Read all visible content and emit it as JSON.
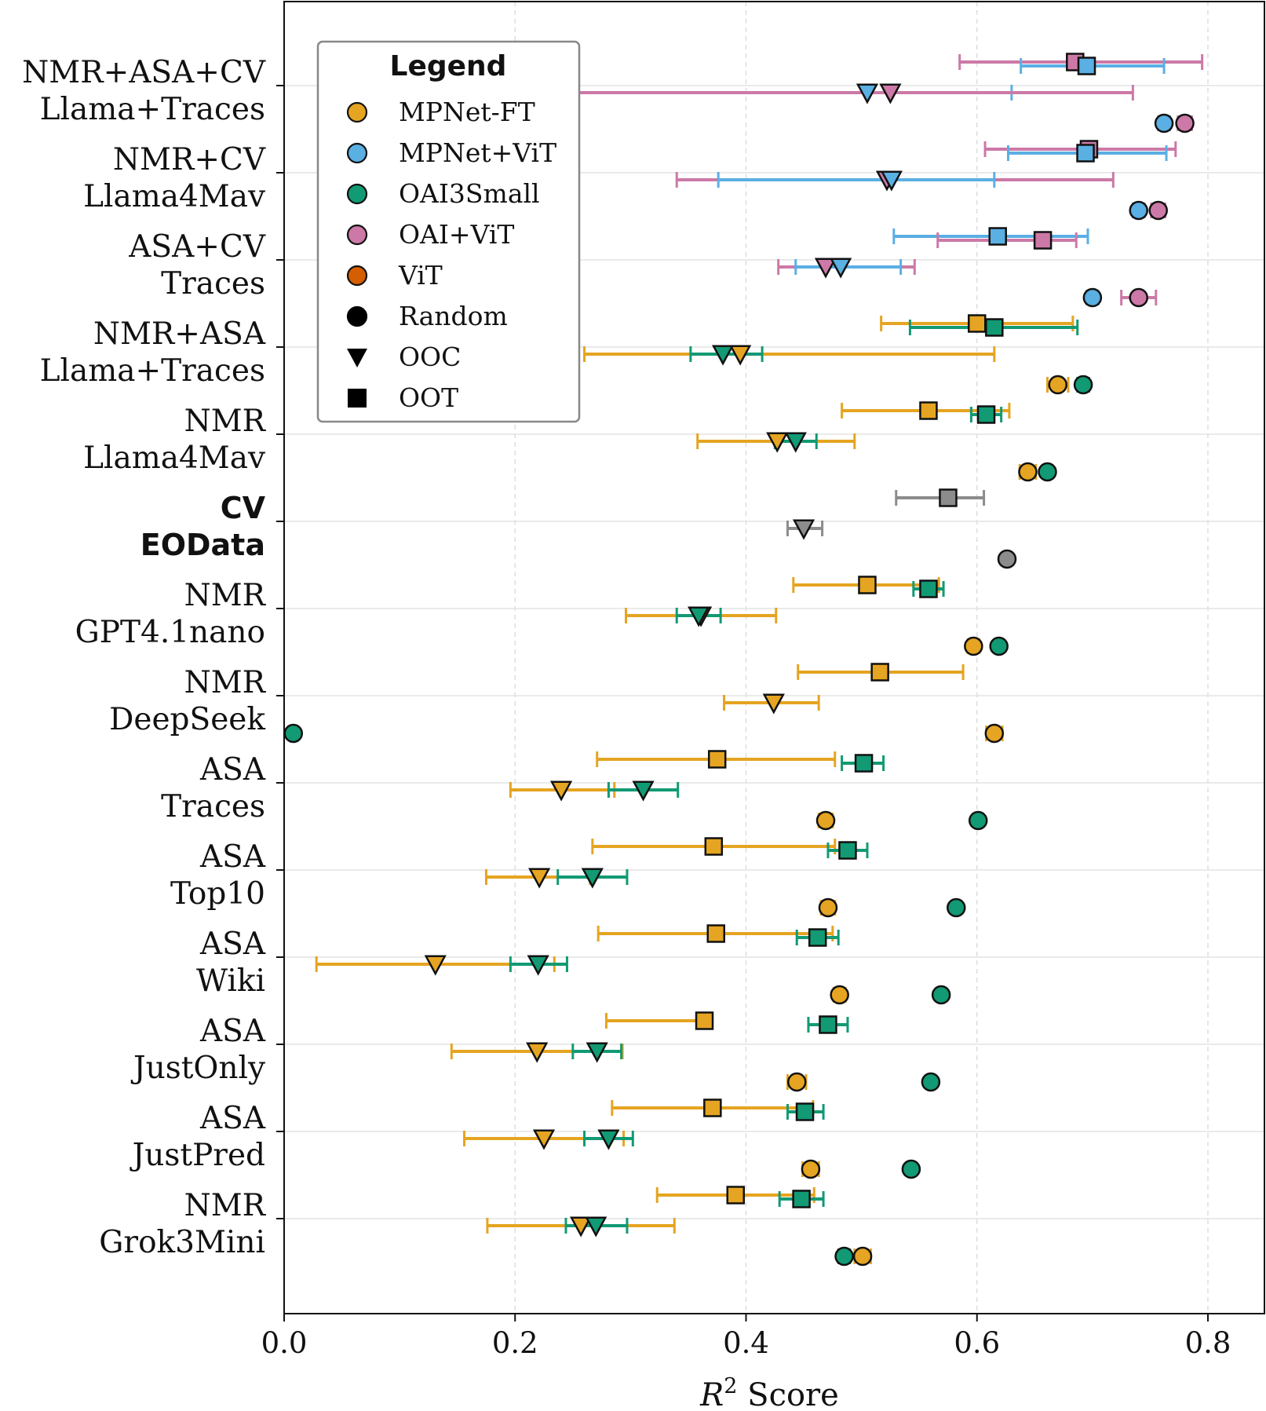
{
  "colors": {
    "MPNet-FT": "#E5A421",
    "MPNet+ViT": "#5AAFE3",
    "OAI3Small": "#119A74",
    "OAI+ViT": "#CC79A7",
    "ViT": "#D55E00",
    "Baseline": "#8C8C8C",
    "Legend-Black": "#000000"
  },
  "chart_data": {
    "type": "scatter",
    "title": "",
    "xlabel_main": "R",
    "xlabel_sup": "2",
    "xlabel_rest": " Score",
    "xlim": [
      0.0,
      0.85
    ],
    "xticks": [
      {
        "value": 0.0,
        "label": "0.0"
      },
      {
        "value": 0.2,
        "label": "0.2"
      },
      {
        "value": 0.4,
        "label": "0.4"
      },
      {
        "value": 0.6,
        "label": "0.6"
      },
      {
        "value": 0.8,
        "label": "0.8"
      }
    ],
    "grid": true,
    "legend": {
      "title": "Legend",
      "position": "top-left",
      "entries": [
        {
          "label": "MPNet-FT",
          "marker": "circle",
          "color": "MPNet-FT"
        },
        {
          "label": "MPNet+ViT",
          "marker": "circle",
          "color": "MPNet+ViT"
        },
        {
          "label": "OAI3Small",
          "marker": "circle",
          "color": "OAI3Small"
        },
        {
          "label": "OAI+ViT",
          "marker": "circle",
          "color": "OAI+ViT"
        },
        {
          "label": "ViT",
          "marker": "circle",
          "color": "ViT"
        },
        {
          "label": "Random",
          "marker": "circle",
          "color": "Legend-Black"
        },
        {
          "label": "OOC",
          "marker": "triangle",
          "color": "Legend-Black"
        },
        {
          "label": "OOT",
          "marker": "square",
          "color": "Legend-Black"
        }
      ]
    },
    "groups": [
      {
        "line1": "NMR+ASA+CV",
        "line2": "Llama+Traces",
        "bold": false,
        "points": [
          {
            "series": "OAI+ViT",
            "split": "OOT",
            "value": 0.685,
            "lo": 0.585,
            "hi": 0.795
          },
          {
            "series": "MPNet+ViT",
            "split": "OOT",
            "value": 0.695,
            "lo": 0.638,
            "hi": 0.762
          },
          {
            "series": "MPNet+ViT",
            "split": "OOC",
            "value": 0.505,
            "lo": 0.21,
            "hi": 0.63
          },
          {
            "series": "OAI+ViT",
            "split": "OOC",
            "value": 0.525,
            "lo": 0.22,
            "hi": 0.735
          },
          {
            "series": "MPNet+ViT",
            "split": "Random",
            "value": 0.762,
            "lo": 0.757,
            "hi": 0.767
          },
          {
            "series": "OAI+ViT",
            "split": "Random",
            "value": 0.78,
            "lo": 0.774,
            "hi": 0.786
          }
        ]
      },
      {
        "line1": "NMR+CV",
        "line2": "Llama4Mav",
        "bold": false,
        "points": [
          {
            "series": "OAI+ViT",
            "split": "OOT",
            "value": 0.697,
            "lo": 0.607,
            "hi": 0.772
          },
          {
            "series": "MPNet+ViT",
            "split": "OOT",
            "value": 0.694,
            "lo": 0.627,
            "hi": 0.764
          },
          {
            "series": "OAI+ViT",
            "split": "OOC",
            "value": 0.522,
            "lo": 0.34,
            "hi": 0.718
          },
          {
            "series": "MPNet+ViT",
            "split": "OOC",
            "value": 0.526,
            "lo": 0.376,
            "hi": 0.615
          },
          {
            "series": "MPNet+ViT",
            "split": "Random",
            "value": 0.74,
            "lo": 0.735,
            "hi": 0.745
          },
          {
            "series": "OAI+ViT",
            "split": "Random",
            "value": 0.757,
            "lo": 0.751,
            "hi": 0.763
          }
        ]
      },
      {
        "line1": "ASA+CV",
        "line2": "Traces",
        "bold": false,
        "points": [
          {
            "series": "MPNet+ViT",
            "split": "OOT",
            "value": 0.618,
            "lo": 0.528,
            "hi": 0.696
          },
          {
            "series": "OAI+ViT",
            "split": "OOT",
            "value": 0.657,
            "lo": 0.566,
            "hi": 0.686
          },
          {
            "series": "OAI+ViT",
            "split": "OOC",
            "value": 0.469,
            "lo": 0.428,
            "hi": 0.546
          },
          {
            "series": "MPNet+ViT",
            "split": "OOC",
            "value": 0.482,
            "lo": 0.443,
            "hi": 0.534
          },
          {
            "series": "MPNet+ViT",
            "split": "Random",
            "value": 0.7,
            "lo": 0.695,
            "hi": 0.705
          },
          {
            "series": "OAI+ViT",
            "split": "Random",
            "value": 0.74,
            "lo": 0.725,
            "hi": 0.755
          }
        ]
      },
      {
        "line1": "NMR+ASA",
        "line2": "Llama+Traces",
        "bold": false,
        "points": [
          {
            "series": "MPNet-FT",
            "split": "OOT",
            "value": 0.6,
            "lo": 0.517,
            "hi": 0.683
          },
          {
            "series": "OAI3Small",
            "split": "OOT",
            "value": 0.615,
            "lo": 0.542,
            "hi": 0.687
          },
          {
            "series": "MPNet-FT",
            "split": "OOC",
            "value": 0.395,
            "lo": 0.26,
            "hi": 0.615
          },
          {
            "series": "OAI3Small",
            "split": "OOC",
            "value": 0.38,
            "lo": 0.352,
            "hi": 0.414
          },
          {
            "series": "MPNet-FT",
            "split": "Random",
            "value": 0.67,
            "lo": 0.661,
            "hi": 0.679
          },
          {
            "series": "OAI3Small",
            "split": "Random",
            "value": 0.692,
            "lo": 0.687,
            "hi": 0.697
          }
        ]
      },
      {
        "line1": "NMR",
        "line2": "Llama4Mav",
        "bold": false,
        "points": [
          {
            "series": "MPNet-FT",
            "split": "OOT",
            "value": 0.558,
            "lo": 0.483,
            "hi": 0.628
          },
          {
            "series": "OAI3Small",
            "split": "OOT",
            "value": 0.608,
            "lo": 0.595,
            "hi": 0.621
          },
          {
            "series": "MPNet-FT",
            "split": "OOC",
            "value": 0.427,
            "lo": 0.358,
            "hi": 0.494
          },
          {
            "series": "OAI3Small",
            "split": "OOC",
            "value": 0.443,
            "lo": 0.425,
            "hi": 0.461
          },
          {
            "series": "MPNet-FT",
            "split": "Random",
            "value": 0.644,
            "lo": 0.637,
            "hi": 0.651
          },
          {
            "series": "OAI3Small",
            "split": "Random",
            "value": 0.661,
            "lo": 0.657,
            "hi": 0.665
          }
        ]
      },
      {
        "line1": "CV",
        "line2": "EOData",
        "bold": true,
        "points": [
          {
            "series": "Baseline",
            "split": "OOT",
            "value": 0.575,
            "lo": 0.53,
            "hi": 0.606
          },
          {
            "series": "Baseline",
            "split": "OOC",
            "value": 0.45,
            "lo": 0.436,
            "hi": 0.466
          },
          {
            "series": "Baseline",
            "split": "Random",
            "value": 0.626,
            "lo": 0.622,
            "hi": 0.63
          }
        ]
      },
      {
        "line1": "NMR",
        "line2": "GPT4.1nano",
        "bold": false,
        "points": [
          {
            "series": "MPNet-FT",
            "split": "OOT",
            "value": 0.505,
            "lo": 0.441,
            "hi": 0.567
          },
          {
            "series": "OAI3Small",
            "split": "OOT",
            "value": 0.558,
            "lo": 0.545,
            "hi": 0.571
          },
          {
            "series": "MPNet-FT",
            "split": "OOC",
            "value": 0.361,
            "lo": 0.296,
            "hi": 0.426
          },
          {
            "series": "OAI3Small",
            "split": "OOC",
            "value": 0.359,
            "lo": 0.34,
            "hi": 0.378
          },
          {
            "series": "MPNet-FT",
            "split": "Random",
            "value": 0.597,
            "lo": 0.592,
            "hi": 0.602
          },
          {
            "series": "OAI3Small",
            "split": "Random",
            "value": 0.619,
            "lo": 0.615,
            "hi": 0.623
          }
        ]
      },
      {
        "line1": "NMR",
        "line2": "DeepSeek",
        "bold": false,
        "points": [
          {
            "series": "MPNet-FT",
            "split": "OOT",
            "value": 0.516,
            "lo": 0.445,
            "hi": 0.588
          },
          {
            "series": "MPNet-FT",
            "split": "OOC",
            "value": 0.424,
            "lo": 0.381,
            "hi": 0.463
          },
          {
            "series": "MPNet-FT",
            "split": "Random",
            "value": 0.615,
            "lo": 0.608,
            "hi": 0.622
          },
          {
            "series": "OAI3Small",
            "split": "Random",
            "value": 0.008,
            "lo": 0.005,
            "hi": 0.011
          }
        ]
      },
      {
        "line1": "ASA",
        "line2": "Traces",
        "bold": false,
        "points": [
          {
            "series": "MPNet-FT",
            "split": "OOT",
            "value": 0.375,
            "lo": 0.271,
            "hi": 0.477
          },
          {
            "series": "OAI3Small",
            "split": "OOT",
            "value": 0.502,
            "lo": 0.483,
            "hi": 0.519
          },
          {
            "series": "MPNet-FT",
            "split": "OOC",
            "value": 0.24,
            "lo": 0.196,
            "hi": 0.286
          },
          {
            "series": "OAI3Small",
            "split": "OOC",
            "value": 0.311,
            "lo": 0.281,
            "hi": 0.341
          },
          {
            "series": "MPNet-FT",
            "split": "Random",
            "value": 0.469,
            "lo": 0.463,
            "hi": 0.475
          },
          {
            "series": "OAI3Small",
            "split": "Random",
            "value": 0.601,
            "lo": 0.597,
            "hi": 0.605
          }
        ]
      },
      {
        "line1": "ASA",
        "line2": "Top10",
        "bold": false,
        "points": [
          {
            "series": "MPNet-FT",
            "split": "OOT",
            "value": 0.372,
            "lo": 0.267,
            "hi": 0.477
          },
          {
            "series": "OAI3Small",
            "split": "OOT",
            "value": 0.488,
            "lo": 0.471,
            "hi": 0.505
          },
          {
            "series": "MPNet-FT",
            "split": "OOC",
            "value": 0.221,
            "lo": 0.175,
            "hi": 0.265
          },
          {
            "series": "OAI3Small",
            "split": "OOC",
            "value": 0.267,
            "lo": 0.237,
            "hi": 0.297
          },
          {
            "series": "MPNet-FT",
            "split": "Random",
            "value": 0.471,
            "lo": 0.465,
            "hi": 0.477
          },
          {
            "series": "OAI3Small",
            "split": "Random",
            "value": 0.582,
            "lo": 0.578,
            "hi": 0.586
          }
        ]
      },
      {
        "line1": "ASA",
        "line2": "Wiki",
        "bold": false,
        "points": [
          {
            "series": "MPNet-FT",
            "split": "OOT",
            "value": 0.374,
            "lo": 0.272,
            "hi": 0.475
          },
          {
            "series": "OAI3Small",
            "split": "OOT",
            "value": 0.462,
            "lo": 0.444,
            "hi": 0.48
          },
          {
            "series": "MPNet-FT",
            "split": "OOC",
            "value": 0.131,
            "lo": 0.028,
            "hi": 0.234
          },
          {
            "series": "OAI3Small",
            "split": "OOC",
            "value": 0.22,
            "lo": 0.196,
            "hi": 0.245
          },
          {
            "series": "MPNet-FT",
            "split": "Random",
            "value": 0.481,
            "lo": 0.476,
            "hi": 0.486
          },
          {
            "series": "OAI3Small",
            "split": "Random",
            "value": 0.569,
            "lo": 0.565,
            "hi": 0.573
          }
        ]
      },
      {
        "line1": "ASA",
        "line2": "JustOnly",
        "bold": false,
        "points": [
          {
            "series": "MPNet-FT",
            "split": "OOT",
            "value": 0.364,
            "lo": 0.279,
            "hi": 0.364
          },
          {
            "series": "OAI3Small",
            "split": "OOT",
            "value": 0.471,
            "lo": 0.454,
            "hi": 0.488
          },
          {
            "series": "MPNet-FT",
            "split": "OOC",
            "value": 0.219,
            "lo": 0.145,
            "hi": 0.293
          },
          {
            "series": "OAI3Small",
            "split": "OOC",
            "value": 0.271,
            "lo": 0.25,
            "hi": 0.292
          },
          {
            "series": "MPNet-FT",
            "split": "Random",
            "value": 0.444,
            "lo": 0.436,
            "hi": 0.452
          },
          {
            "series": "OAI3Small",
            "split": "Random",
            "value": 0.56,
            "lo": 0.556,
            "hi": 0.564
          }
        ]
      },
      {
        "line1": "ASA",
        "line2": "JustPred",
        "bold": false,
        "points": [
          {
            "series": "MPNet-FT",
            "split": "OOT",
            "value": 0.371,
            "lo": 0.284,
            "hi": 0.458
          },
          {
            "series": "OAI3Small",
            "split": "OOT",
            "value": 0.451,
            "lo": 0.436,
            "hi": 0.467
          },
          {
            "series": "MPNet-FT",
            "split": "OOC",
            "value": 0.225,
            "lo": 0.156,
            "hi": 0.294
          },
          {
            "series": "OAI3Small",
            "split": "OOC",
            "value": 0.281,
            "lo": 0.26,
            "hi": 0.302
          },
          {
            "series": "MPNet-FT",
            "split": "Random",
            "value": 0.456,
            "lo": 0.449,
            "hi": 0.463
          },
          {
            "series": "OAI3Small",
            "split": "Random",
            "value": 0.543,
            "lo": 0.539,
            "hi": 0.547
          }
        ]
      },
      {
        "line1": "NMR",
        "line2": "Grok3Mini",
        "bold": false,
        "points": [
          {
            "series": "MPNet-FT",
            "split": "OOT",
            "value": 0.391,
            "lo": 0.323,
            "hi": 0.459
          },
          {
            "series": "OAI3Small",
            "split": "OOT",
            "value": 0.448,
            "lo": 0.429,
            "hi": 0.467
          },
          {
            "series": "MPNet-FT",
            "split": "OOC",
            "value": 0.257,
            "lo": 0.176,
            "hi": 0.338
          },
          {
            "series": "OAI3Small",
            "split": "OOC",
            "value": 0.27,
            "lo": 0.244,
            "hi": 0.297
          },
          {
            "series": "MPNet-FT",
            "split": "Random",
            "value": 0.501,
            "lo": 0.494,
            "hi": 0.508
          },
          {
            "series": "OAI3Small",
            "split": "Random",
            "value": 0.485,
            "lo": 0.48,
            "hi": 0.49
          }
        ]
      }
    ]
  }
}
